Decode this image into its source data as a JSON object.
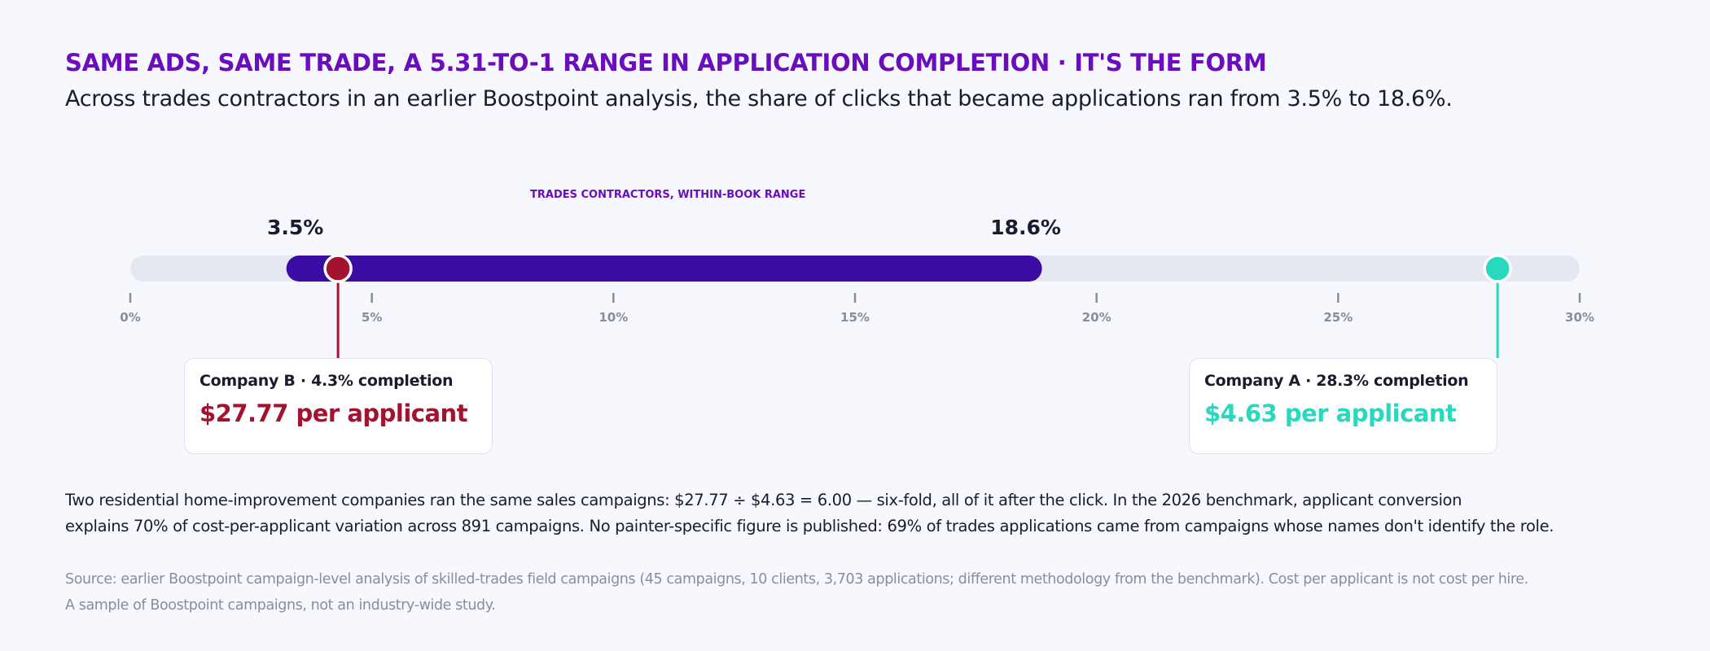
{
  "headline": "SAME ADS, SAME TRADE, A 5.31-TO-1 RANGE IN APPLICATION COMPLETION · IT'S THE FORM",
  "subhead": "Across trades contractors in an earlier Boostpoint analysis, the share of clicks that became applications ran from 3.5% to 18.6%.",
  "chart_data": {
    "type": "range",
    "title": "TRADES CONTRACTORS, WITHIN-BOOK RANGE",
    "axis": {
      "min": 0,
      "max": 30,
      "ticks": [
        0,
        5,
        10,
        15,
        20,
        25,
        30
      ],
      "tick_labels": [
        "0%",
        "5%",
        "10%",
        "15%",
        "20%",
        "25%",
        "30%"
      ]
    },
    "range": {
      "low": 3.5,
      "high": 18.6,
      "low_label": "3.5%",
      "high_label": "18.6%"
    },
    "markers": [
      {
        "id": "b",
        "value": 4.3,
        "title": "Company B · 4.3% completion",
        "cost": "$27.77 per applicant",
        "color": "#a3132f"
      },
      {
        "id": "a",
        "value": 28.3,
        "title": "Company A · 28.3% completion",
        "cost": "$4.63 per applicant",
        "color": "#2ad9bd"
      }
    ],
    "colors": {
      "track": "#e6e8f1",
      "range": "#3a0ca3",
      "tick": "#8a8d9a"
    }
  },
  "body": {
    "line1": "Two residential home-improvement companies ran the same sales campaigns: $27.77 ÷ $4.63 = 6.00 — six-fold, all of it after the click. In the 2026 benchmark, applicant conversion",
    "line2": "explains 70% of cost-per-applicant variation across 891 campaigns. No painter-specific figure is published: 69% of trades applications came from campaigns whose names don't identify the role."
  },
  "source": {
    "line1": "Source: earlier Boostpoint campaign-level analysis of skilled-trades field campaigns (45 campaigns, 10 clients, 3,703 applications; different methodology from the benchmark). Cost per applicant is not cost per hire.",
    "line2": "A sample of Boostpoint campaigns, not an industry-wide study."
  }
}
